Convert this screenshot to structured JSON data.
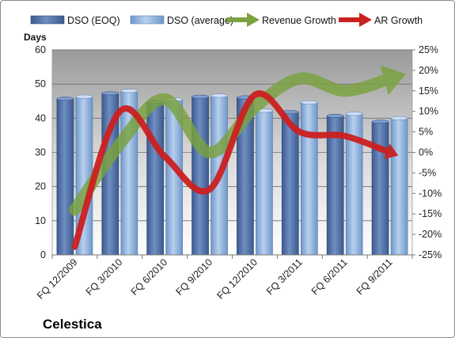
{
  "chart_data": {
    "type": "bar",
    "title": "Celestica",
    "categories": [
      "FQ 12/2009",
      "FQ 3/2010",
      "FQ 6/2010",
      "FQ 9/2010",
      "FQ 12/2010",
      "FQ 3/2011",
      "FQ 6/2011",
      "FQ 9/2011"
    ],
    "ylabel": "Days",
    "ylim": [
      0,
      60
    ],
    "yticks": [
      "0",
      "10",
      "20",
      "30",
      "40",
      "50",
      "60"
    ],
    "y2lim": [
      -0.25,
      0.25
    ],
    "y2ticks": [
      "-25%",
      "-20%",
      "-15%",
      "-10%",
      "-5%",
      "0%",
      "5%",
      "10%",
      "15%",
      "20%",
      "25%"
    ],
    "grid": "horizontal",
    "legend_position": "top",
    "series": [
      {
        "name": "DSO (EOQ)",
        "kind": "bar",
        "axis": "left",
        "color": "#4f6fa6",
        "values": [
          45.7,
          47.3,
          44.8,
          46.3,
          46.1,
          41.8,
          40.7,
          39.0
        ]
      },
      {
        "name": "DSO (average)",
        "kind": "bar",
        "axis": "left",
        "color": "#8fb2dd",
        "values": [
          46.3,
          48.0,
          45.5,
          46.6,
          42.2,
          44.6,
          41.3,
          40.0
        ]
      },
      {
        "name": "Revenue Growth",
        "kind": "arrow-line",
        "axis": "right",
        "color": "#7aa23e",
        "values": [
          -0.14,
          0.02,
          0.13,
          0.0,
          0.11,
          0.18,
          0.15,
          0.18
        ]
      },
      {
        "name": "AR Growth",
        "kind": "arrow-line",
        "axis": "right",
        "color": "#cc2020",
        "values": [
          -0.23,
          0.1,
          -0.01,
          -0.09,
          0.14,
          0.05,
          0.04,
          0.0
        ]
      }
    ]
  }
}
